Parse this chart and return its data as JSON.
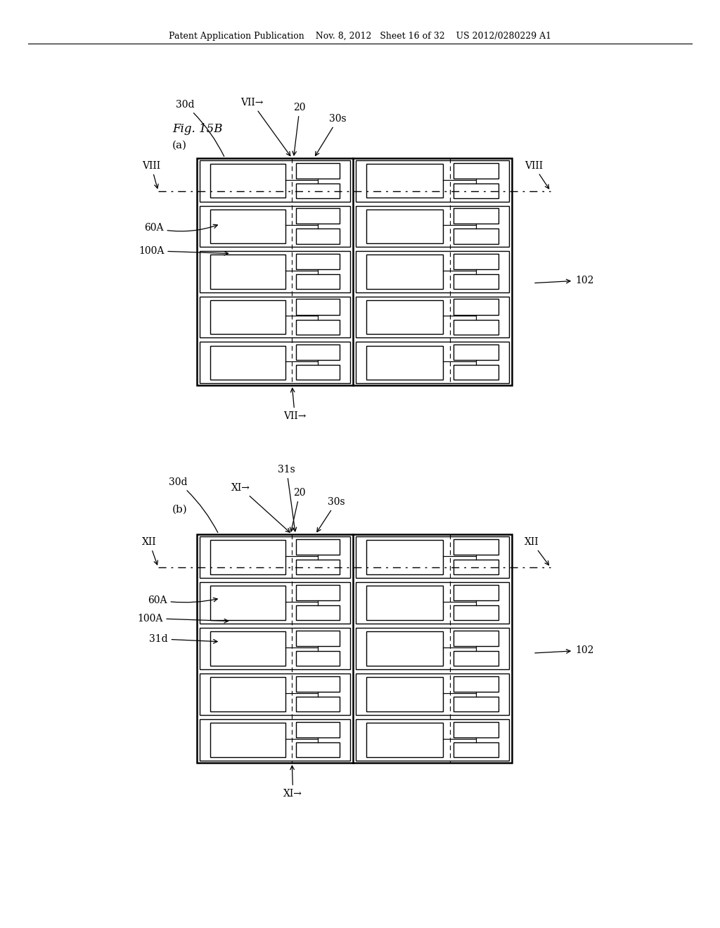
{
  "bg_color": "#ffffff",
  "header_text": "Patent Application Publication    Nov. 8, 2012   Sheet 16 of 32    US 2012/0280229 A1",
  "fig_title": "Fig. 15B",
  "subfig_a_label": "(a)",
  "subfig_b_label": "(b)"
}
